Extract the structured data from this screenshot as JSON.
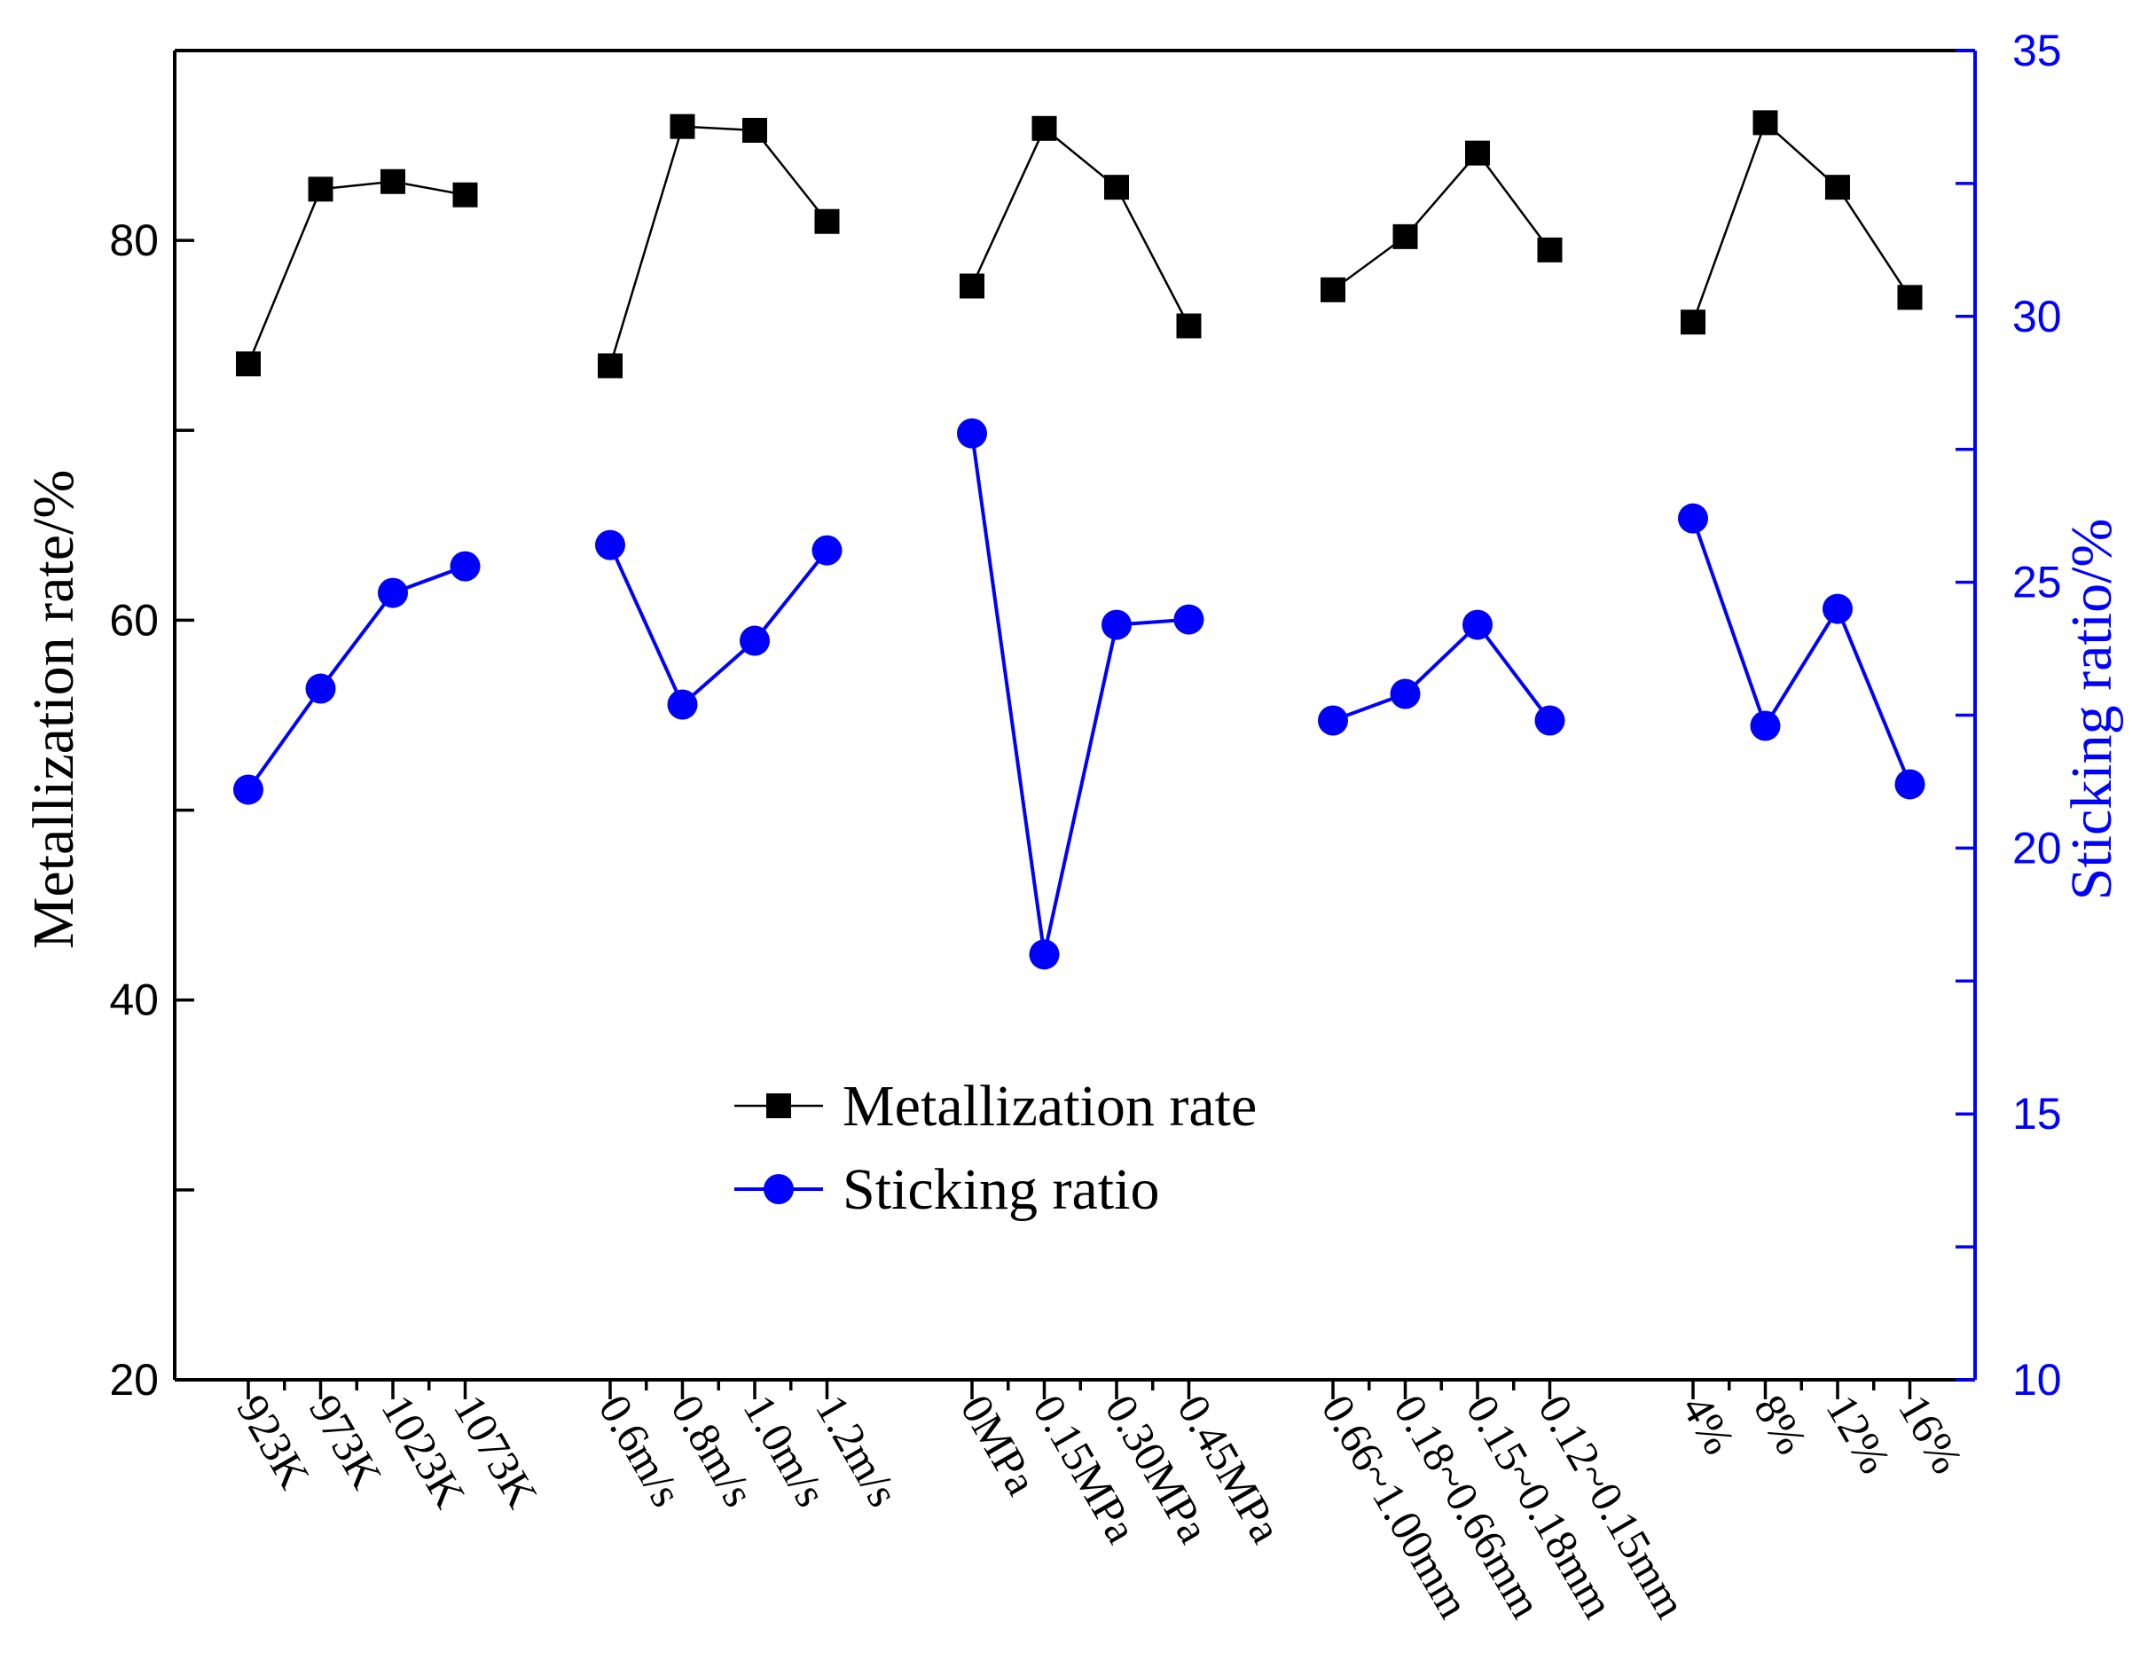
{
  "colors": {
    "metal": "#000000",
    "stick": "#0000ff"
  },
  "chart_data": {
    "type": "line",
    "title": "",
    "ylabel": "Metallization rate/%",
    "y2label": "Sticking ratio/%",
    "ylim": [
      20,
      90
    ],
    "y2lim": [
      10,
      35
    ],
    "yticks": [
      20,
      40,
      60,
      80
    ],
    "yticks_labeled": [
      "20",
      "40",
      "60",
      "80"
    ],
    "y2ticks": [
      10,
      15,
      20,
      25,
      30,
      35
    ],
    "y2ticks_labeled": [
      "10",
      "15",
      "20",
      "25",
      "30",
      "35"
    ],
    "groups": [
      {
        "categories": [
          "923K",
          "973K",
          "1023K",
          "1073K"
        ],
        "metallization": [
          73.5,
          82.7,
          83.1,
          82.4
        ],
        "sticking": [
          21.1,
          23.0,
          24.8,
          25.3
        ]
      },
      {
        "categories": [
          "0.6m/s",
          "0.8m/s",
          "1.0m/s",
          "1.2m/s"
        ],
        "metallization": [
          73.4,
          86.0,
          85.8,
          81.0
        ],
        "sticking": [
          25.7,
          22.7,
          23.9,
          25.6
        ]
      },
      {
        "categories": [
          "0MPa",
          "0.15MPa",
          "0.30MPa",
          "0.45MPa"
        ],
        "metallization": [
          77.6,
          85.9,
          82.8,
          75.5
        ],
        "sticking": [
          27.8,
          18.0,
          24.2,
          24.3
        ]
      },
      {
        "categories": [
          "0.66~1.00mm",
          "0.18~0.66mm",
          "0.15~0.18mm",
          "0.12~0.15mm"
        ],
        "metallization": [
          77.4,
          80.2,
          84.6,
          79.5
        ],
        "sticking": [
          22.4,
          22.9,
          24.2,
          22.4
        ]
      },
      {
        "categories": [
          "4%",
          "8%",
          "12%",
          "16%"
        ],
        "metallization": [
          75.7,
          86.2,
          82.8,
          77.0
        ],
        "sticking": [
          26.2,
          22.3,
          24.5,
          21.2
        ]
      }
    ],
    "legend": {
      "position": "center",
      "entries": [
        "Metallization rate",
        "Sticking ratio"
      ]
    }
  }
}
